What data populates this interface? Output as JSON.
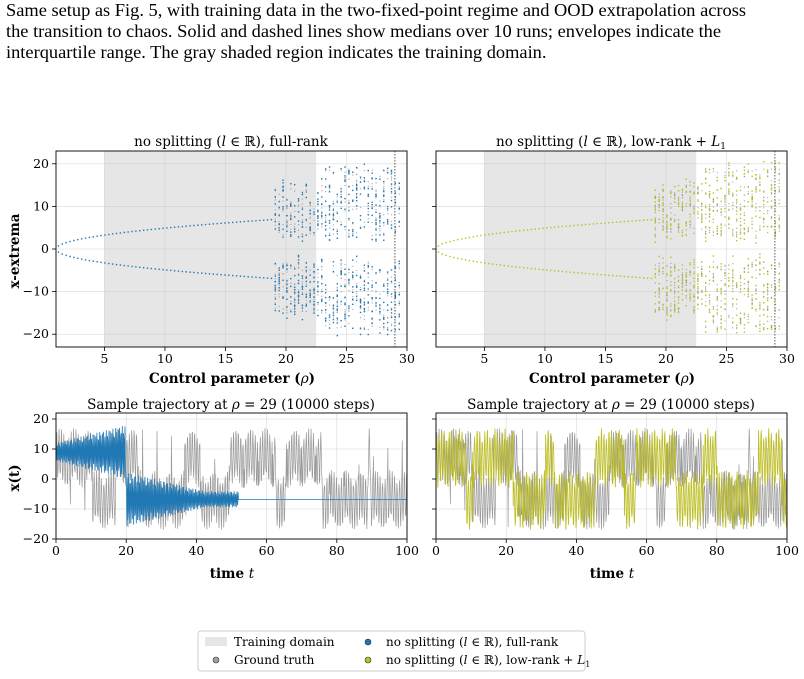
{
  "caption": {
    "lines": [
      "Same setup as Fig. 5, with training data in the two-fixed-point regime and OOD extrapolation across",
      "the transition to chaos. Solid and dashed lines show medians over 10 runs; envelopes indicate the",
      "interquartile range. The gray shaded region indicates the training domain."
    ]
  },
  "colors": {
    "model_a": "#1f77b4",
    "model_b": "#bcbd22",
    "ground_truth": "#7f7f7f",
    "training_domain": "#e6e6e6"
  },
  "chart_data": [
    {
      "type": "scatter",
      "title": "no splitting (l ∈ ℝ), full-rank",
      "xlabel": "Control parameter (ρ)",
      "ylabel": "x-extrema",
      "xlim": [
        1,
        30
      ],
      "ylim": [
        -23,
        23
      ],
      "xticks": [
        5,
        10,
        15,
        20,
        25,
        30
      ],
      "yticks": [
        -20,
        -10,
        0,
        10,
        20
      ],
      "training_domain": [
        5,
        22.5
      ],
      "reference_line_x": 29,
      "grid": true,
      "series": [
        {
          "name": "Ground truth",
          "color": "#7f7f7f"
        },
        {
          "name": "no splitting (l ∈ ℝ), full-rank",
          "color": "#1f77b4"
        }
      ]
    },
    {
      "type": "scatter",
      "title": "no splitting (l ∈ ℝ), low-rank + L1",
      "xlabel": "Control parameter (ρ)",
      "ylabel": "",
      "xlim": [
        1,
        30
      ],
      "ylim": [
        -23,
        23
      ],
      "xticks": [
        5,
        10,
        15,
        20,
        25,
        30
      ],
      "yticks": [
        -20,
        -10,
        0,
        10,
        20
      ],
      "training_domain": [
        5,
        22.5
      ],
      "reference_line_x": 29,
      "grid": true,
      "series": [
        {
          "name": "Ground truth",
          "color": "#7f7f7f"
        },
        {
          "name": "no splitting (l ∈ ℝ), low-rank + L1",
          "color": "#bcbd22"
        }
      ]
    },
    {
      "type": "line",
      "title": "Sample trajectory at ρ = 29 (10000 steps)",
      "xlabel": "time t",
      "ylabel": "x(t)",
      "xlim": [
        0,
        100
      ],
      "ylim": [
        -20,
        22
      ],
      "xticks": [
        0,
        20,
        40,
        60,
        80,
        100
      ],
      "yticks": [
        -20,
        -10,
        0,
        10,
        20
      ],
      "grid": true,
      "model_fixed_point_value": -6.8,
      "series": [
        {
          "name": "Ground truth",
          "color": "#7f7f7f"
        },
        {
          "name": "no splitting (l ∈ ℝ), full-rank",
          "color": "#1f77b4"
        }
      ]
    },
    {
      "type": "line",
      "title": "Sample trajectory at ρ = 29 (10000 steps)",
      "xlabel": "time t",
      "ylabel": "",
      "xlim": [
        0,
        100
      ],
      "ylim": [
        -20,
        22
      ],
      "xticks": [
        0,
        20,
        40,
        60,
        80,
        100
      ],
      "yticks": [
        -20,
        -10,
        0,
        10,
        20
      ],
      "grid": true,
      "series": [
        {
          "name": "Ground truth",
          "color": "#7f7f7f"
        },
        {
          "name": "no splitting (l ∈ ℝ), low-rank + L1",
          "color": "#bcbd22"
        }
      ]
    }
  ],
  "legend": {
    "items": [
      {
        "label": "Training domain",
        "kind": "patch",
        "color": "#e6e6e6"
      },
      {
        "label": "Ground truth",
        "kind": "dot",
        "color": "#a0a0a0"
      },
      {
        "label": "no splitting (l ∈ ℝ), full-rank",
        "kind": "dot",
        "color": "#1f77b4"
      },
      {
        "label": "no splitting (l ∈ ℝ), low-rank + L1",
        "kind": "dot",
        "color": "#bcbd22"
      }
    ]
  }
}
